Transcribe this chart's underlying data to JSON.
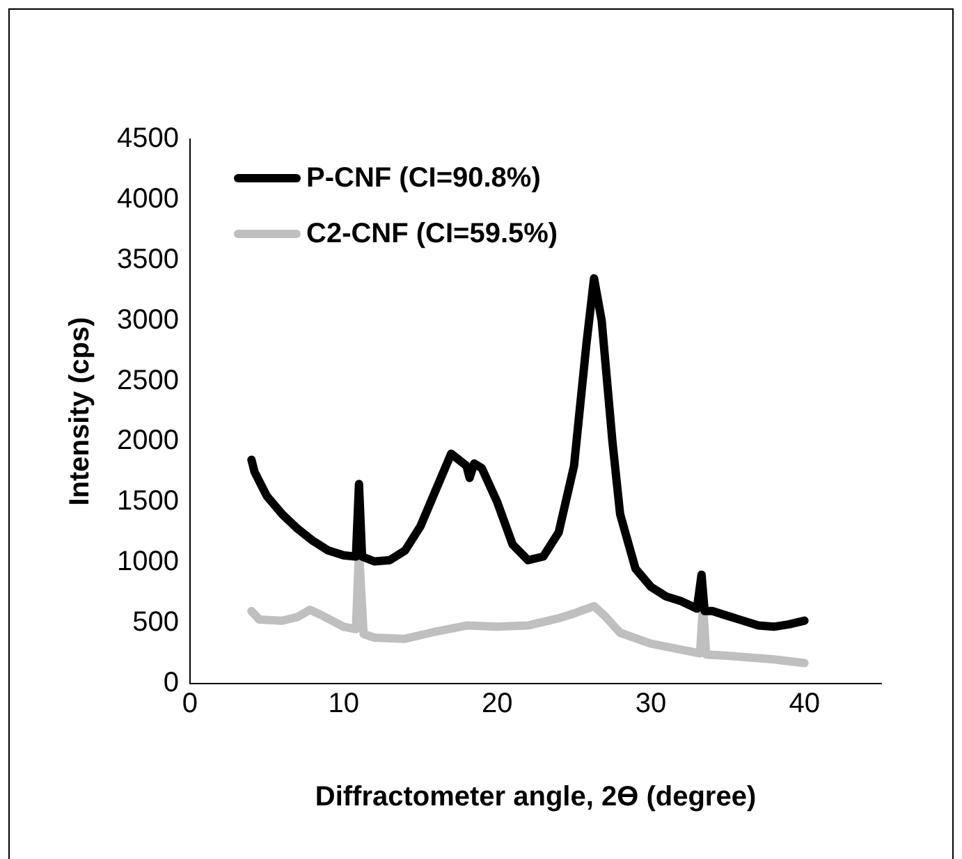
{
  "chart_data": {
    "type": "line",
    "xlabel": "Diffractometer angle, 2Ɵ (degree)",
    "ylabel": "Intensity (cps)",
    "xlim": [
      0,
      45
    ],
    "xticks": [
      0,
      10,
      20,
      30,
      40
    ],
    "ylim": [
      0,
      4500
    ],
    "yticks": [
      0,
      500,
      1000,
      1500,
      2000,
      2500,
      3000,
      3500,
      4000,
      4500
    ],
    "grid": false,
    "legend": "top left",
    "marker": "none",
    "line_style": "solid",
    "series": [
      {
        "name": "P-CNF (CI=90.8%)",
        "color": "#000000",
        "x": [
          4,
          4.2,
          5,
          6,
          7,
          8,
          9,
          10,
          10.8,
          11,
          11.2,
          12,
          13,
          14,
          15,
          16,
          17,
          17.5,
          18,
          18.2,
          18.5,
          19,
          20,
          21,
          22,
          23,
          24,
          25,
          25.8,
          26.3,
          26.8,
          27.5,
          28,
          29,
          30,
          31,
          32,
          33,
          33.3,
          33.5,
          34,
          35,
          36,
          37,
          38,
          39,
          40
        ],
        "values": [
          1850,
          1750,
          1550,
          1400,
          1280,
          1180,
          1100,
          1060,
          1050,
          1650,
          1050,
          1010,
          1020,
          1100,
          1300,
          1600,
          1900,
          1850,
          1800,
          1700,
          1820,
          1780,
          1500,
          1150,
          1020,
          1050,
          1250,
          1800,
          2800,
          3350,
          3000,
          2000,
          1400,
          950,
          800,
          720,
          680,
          620,
          900,
          600,
          600,
          560,
          520,
          480,
          470,
          490,
          520
        ]
      },
      {
        "name": "C2-CNF (CI=59.5%)",
        "color": "#bfbfbf",
        "x": [
          4,
          4.5,
          6,
          7,
          7.8,
          8.5,
          10,
          10.8,
          11,
          11.3,
          12,
          14,
          16,
          18,
          20,
          22,
          24,
          25,
          26.3,
          27,
          28,
          30,
          32,
          33.2,
          33.4,
          33.6,
          35,
          38,
          40
        ],
        "values": [
          600,
          530,
          520,
          550,
          610,
          570,
          470,
          450,
          1100,
          410,
          380,
          370,
          430,
          480,
          470,
          480,
          540,
          580,
          640,
          560,
          420,
          330,
          280,
          250,
          650,
          240,
          230,
          200,
          170
        ]
      }
    ]
  }
}
